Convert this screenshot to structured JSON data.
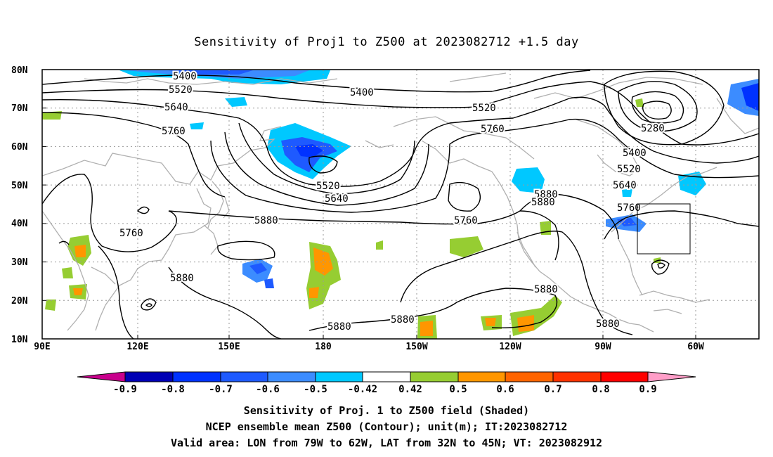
{
  "title": "Sensitivity of Proj1 to Z500 at 2023082712 +1.5 day",
  "map": {
    "lat_labels": [
      "80N",
      "70N",
      "60N",
      "50N",
      "40N",
      "30N",
      "20N",
      "10N"
    ],
    "lon_labels": [
      "90E",
      "120E",
      "150E",
      "180",
      "150W",
      "120W",
      "90W",
      "60W"
    ],
    "valid_area_box": {
      "lon_from": "79W",
      "lon_to": "62W",
      "lat_from": "32N",
      "lat_to": "45N"
    },
    "contour_labels": [
      "5400",
      "5520",
      "5640",
      "5760",
      "5400",
      "5520",
      "5760",
      "5520",
      "5640",
      "5880",
      "5760",
      "5880",
      "5880",
      "5880",
      "5880",
      "5880",
      "5880",
      "5880",
      "5760",
      "5280",
      "5400",
      "5520",
      "5640",
      "5760"
    ],
    "colors": {
      "frame": "#000000",
      "coastline": "#b0b0b0",
      "grid": "#9a9a9a",
      "contour": "#000000"
    }
  },
  "colorbar": {
    "labels": [
      "-0.9",
      "-0.8",
      "-0.7",
      "-0.6",
      "-0.5",
      "-0.42",
      "0.42",
      "0.5",
      "0.6",
      "0.7",
      "0.8",
      "0.9"
    ],
    "colors": [
      "#c8008c",
      "#0000b4",
      "#0032ff",
      "#1e5aff",
      "#3c8cff",
      "#00c8ff",
      "#ffffff",
      "#96cd32",
      "#ff9600",
      "#ff6400",
      "#ff3200",
      "#ff0000",
      "#ff9ec8"
    ]
  },
  "caption": {
    "line1": "Sensitivity of Proj. 1 to Z500 field (Shaded)",
    "line2": "NCEP ensemble mean Z500 (Contour); unit(m); IT:2023082712",
    "line3": "Valid area: LON from 79W to 62W, LAT from 32N to 45N; VT: 2023082912"
  }
}
